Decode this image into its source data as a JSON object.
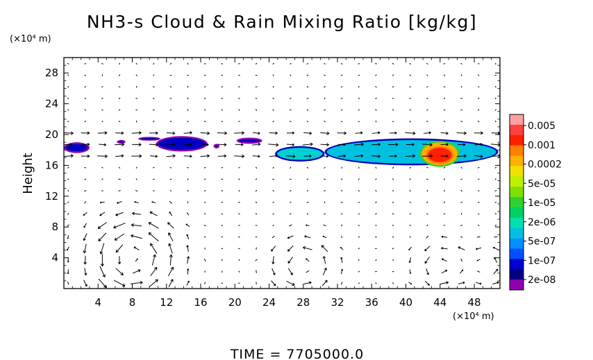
{
  "chart_data": {
    "type": "heatmap",
    "title": "NH3-s Cloud & Rain Mixing Ratio [kg/kg]",
    "ylabel": "Height",
    "xlabel": "",
    "x_unit": "(×10⁴ m)",
    "y_unit": "(×10⁴ m)",
    "xlim": [
      0,
      51
    ],
    "ylim": [
      0,
      30
    ],
    "x_ticks": [
      4,
      8,
      12,
      16,
      20,
      24,
      28,
      32,
      36,
      40,
      44,
      48
    ],
    "y_ticks": [
      4,
      8,
      12,
      16,
      20,
      24,
      28
    ],
    "colorbar": {
      "labels": [
        "0.005",
        "0.001",
        "0.0002",
        "5e-05",
        "1e-05",
        "2e-06",
        "5e-07",
        "1e-07",
        "2e-08"
      ],
      "colors": [
        "#ffa0a0",
        "#ff4040",
        "#ff2000",
        "#ff8000",
        "#ffb000",
        "#f0e000",
        "#c0f000",
        "#80e000",
        "#30d030",
        "#00d060",
        "#00e0b0",
        "#00c0e0",
        "#0090ff",
        "#0050ff",
        "#0000d0",
        "#000080",
        "#9000b0"
      ]
    },
    "cloud_layers": [
      {
        "x": [
          0,
          3
        ],
        "y": [
          17.6,
          19.0
        ],
        "level": "1e-07"
      },
      {
        "x": [
          6.2,
          7.2
        ],
        "y": [
          18.8,
          19.3
        ],
        "level": "2e-08"
      },
      {
        "x": [
          8.7,
          11.3
        ],
        "y": [
          19.2,
          19.7
        ],
        "level": "2e-08"
      },
      {
        "x": [
          10.8,
          16.8
        ],
        "y": [
          17.8,
          19.8
        ],
        "level": "1e-07"
      },
      {
        "x": [
          17.5,
          18.2
        ],
        "y": [
          18.2,
          18.8
        ],
        "level": "2e-08"
      },
      {
        "x": [
          20.2,
          23.2
        ],
        "y": [
          18.8,
          19.6
        ],
        "level": "1e-07"
      },
      {
        "x": [
          24.7,
          30.5
        ],
        "y": [
          16.5,
          18.5
        ],
        "level": "2e-06"
      },
      {
        "x": [
          30.5,
          50.8
        ],
        "y": [
          16.0,
          19.5
        ],
        "level": "5e-06"
      },
      {
        "x": [
          41.6,
          46.3
        ],
        "y": [
          15.8,
          19.2
        ],
        "level": "0.0002"
      },
      {
        "x": [
          42.3,
          45.6
        ],
        "y": [
          16.2,
          18.5
        ],
        "level": "0.001"
      }
    ],
    "vortices": [
      {
        "x": 8,
        "y": 4,
        "r": 5
      },
      {
        "x": 28,
        "y": 3,
        "r": 3.5
      },
      {
        "x": 44,
        "y": 3,
        "r": 3
      },
      {
        "x": 49.5,
        "y": 3,
        "r": 2.5
      }
    ],
    "annotation": "TIME  =  7705000.0"
  }
}
